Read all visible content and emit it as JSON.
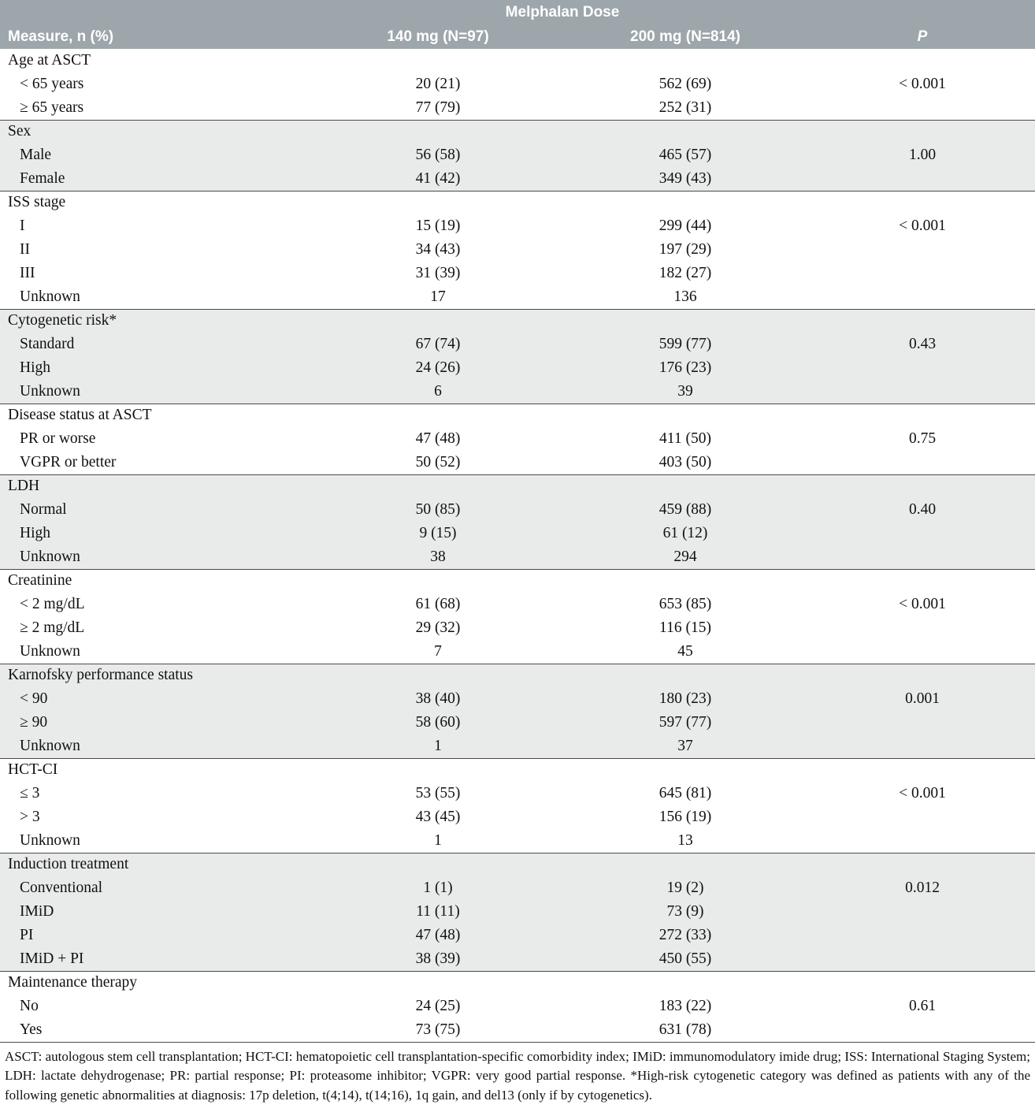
{
  "colors": {
    "header_bg": "#9da6ab",
    "header_text": "#ffffff",
    "stripe_bg": "#e9eaea",
    "rule": "#4a4a4a"
  },
  "header": {
    "span_title": "Melphalan Dose",
    "col_measure": "Measure, n (%)",
    "col_140": "140 mg (N=97)",
    "col_200": "200 mg (N=814)",
    "col_p": "P"
  },
  "groups": [
    {
      "label": "Age at ASCT",
      "rows": [
        {
          "label": "< 65 years",
          "v140": "20 (21)",
          "v200": "562 (69)",
          "p": "< 0.001"
        },
        {
          "label": "≥ 65 years",
          "v140": "77 (79)",
          "v200": "252 (31)",
          "p": ""
        }
      ]
    },
    {
      "label": "Sex",
      "rows": [
        {
          "label": "Male",
          "v140": "56 (58)",
          "v200": "465 (57)",
          "p": "1.00"
        },
        {
          "label": "Female",
          "v140": "41 (42)",
          "v200": "349 (43)",
          "p": ""
        }
      ]
    },
    {
      "label": "ISS stage",
      "rows": [
        {
          "label": "I",
          "v140": "15 (19)",
          "v200": "299 (44)",
          "p": "< 0.001"
        },
        {
          "label": "II",
          "v140": "34 (43)",
          "v200": "197 (29)",
          "p": ""
        },
        {
          "label": "III",
          "v140": "31 (39)",
          "v200": "182 (27)",
          "p": ""
        },
        {
          "label": "Unknown",
          "v140": "17",
          "v200": "136",
          "p": ""
        }
      ]
    },
    {
      "label": "Cytogenetic risk*",
      "rows": [
        {
          "label": "Standard",
          "v140": "67 (74)",
          "v200": "599 (77)",
          "p": "0.43"
        },
        {
          "label": "High",
          "v140": "24 (26)",
          "v200": "176 (23)",
          "p": ""
        },
        {
          "label": "Unknown",
          "v140": "6",
          "v200": "39",
          "p": ""
        }
      ]
    },
    {
      "label": "Disease status at ASCT",
      "rows": [
        {
          "label": "PR or worse",
          "v140": "47 (48)",
          "v200": "411 (50)",
          "p": "0.75"
        },
        {
          "label": "VGPR or better",
          "v140": "50 (52)",
          "v200": "403 (50)",
          "p": ""
        }
      ]
    },
    {
      "label": "LDH",
      "rows": [
        {
          "label": "Normal",
          "v140": "50 (85)",
          "v200": "459 (88)",
          "p": "0.40"
        },
        {
          "label": "High",
          "v140": "9 (15)",
          "v200": "61 (12)",
          "p": ""
        },
        {
          "label": "Unknown",
          "v140": "38",
          "v200": "294",
          "p": ""
        }
      ]
    },
    {
      "label": "Creatinine",
      "rows": [
        {
          "label": "< 2 mg/dL",
          "v140": "61 (68)",
          "v200": "653 (85)",
          "p": "< 0.001"
        },
        {
          "label": "≥ 2 mg/dL",
          "v140": "29 (32)",
          "v200": "116 (15)",
          "p": ""
        },
        {
          "label": "Unknown",
          "v140": "7",
          "v200": "45",
          "p": ""
        }
      ]
    },
    {
      "label": "Karnofsky performance status",
      "rows": [
        {
          "label": "< 90",
          "v140": "38 (40)",
          "v200": "180 (23)",
          "p": "0.001"
        },
        {
          "label": "≥ 90",
          "v140": "58 (60)",
          "v200": "597 (77)",
          "p": ""
        },
        {
          "label": "Unknown",
          "v140": "1",
          "v200": "37",
          "p": ""
        }
      ]
    },
    {
      "label": "HCT-CI",
      "rows": [
        {
          "label": "≤ 3",
          "v140": "53 (55)",
          "v200": "645 (81)",
          "p": "< 0.001"
        },
        {
          "label": "> 3",
          "v140": "43 (45)",
          "v200": "156 (19)",
          "p": ""
        },
        {
          "label": "Unknown",
          "v140": "1",
          "v200": "13",
          "p": ""
        }
      ]
    },
    {
      "label": "Induction treatment",
      "rows": [
        {
          "label": "Conventional",
          "v140": "1 (1)",
          "v200": "19 (2)",
          "p": "0.012"
        },
        {
          "label": "IMiD",
          "v140": "11 (11)",
          "v200": "73 (9)",
          "p": ""
        },
        {
          "label": "PI",
          "v140": "47 (48)",
          "v200": "272 (33)",
          "p": ""
        },
        {
          "label": "IMiD + PI",
          "v140": "38 (39)",
          "v200": "450 (55)",
          "p": ""
        }
      ]
    },
    {
      "label": "Maintenance therapy",
      "rows": [
        {
          "label": "No",
          "v140": "24 (25)",
          "v200": "183 (22)",
          "p": "0.61"
        },
        {
          "label": "Yes",
          "v140": "73 (75)",
          "v200": "631 (78)",
          "p": ""
        }
      ]
    }
  ],
  "footnote": "ASCT: autologous stem cell transplantation; HCT-CI: hematopoietic cell transplantation-specific comorbidity index; IMiD: immunomodulatory imide drug; ISS: International Staging System; LDH: lactate dehydrogenase; PR: partial response; PI: proteasome inhibitor; VGPR: very good partial response. *High-risk cytogenetic category was defined as patients with any of the following genetic abnormalities at diagnosis: 17p deletion, t(4;14), t(14;16), 1q gain, and del13 (only if by cytogenetics)."
}
